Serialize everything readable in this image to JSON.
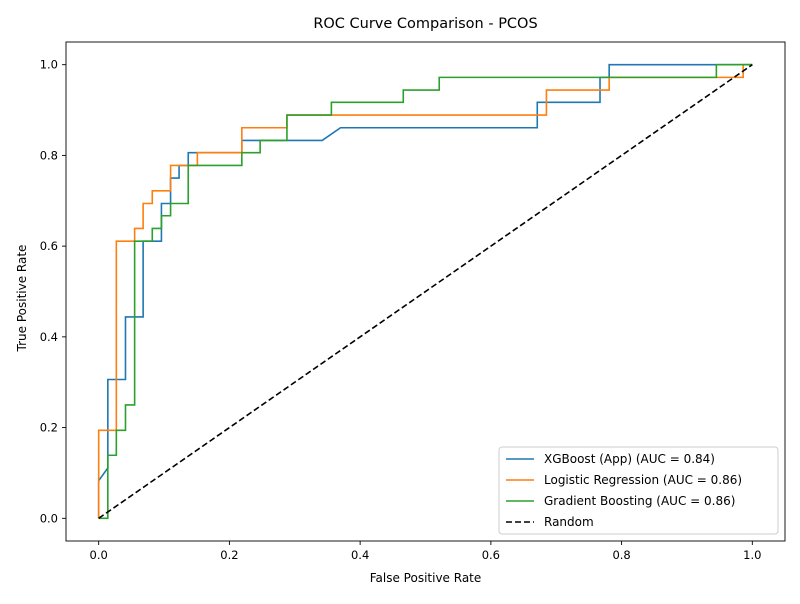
{
  "chart_data": {
    "type": "line",
    "title": "ROC Curve Comparison - PCOS",
    "xlabel": "False Positive Rate",
    "ylabel": "True Positive Rate",
    "xlim": [
      -0.05,
      1.05
    ],
    "ylim": [
      -0.05,
      1.05
    ],
    "xticks": [
      "0.0",
      "0.2",
      "0.4",
      "0.6",
      "0.8",
      "1.0"
    ],
    "yticks": [
      "0.0",
      "0.2",
      "0.4",
      "0.6",
      "0.8",
      "1.0"
    ],
    "grid": false,
    "legend_position": "lower-right",
    "series": [
      {
        "name": "XGBoost (App) (AUC = 0.84)",
        "color": "#1f77b4",
        "x": [
          0.0,
          0.0,
          0.014,
          0.014,
          0.041,
          0.041,
          0.068,
          0.068,
          0.096,
          0.096,
          0.11,
          0.11,
          0.123,
          0.123,
          0.137,
          0.137,
          0.219,
          0.219,
          0.342,
          0.37,
          0.671,
          0.671,
          0.767,
          0.767,
          0.781,
          0.781,
          1.0
        ],
        "y": [
          0.0,
          0.083,
          0.111,
          0.306,
          0.306,
          0.444,
          0.444,
          0.611,
          0.611,
          0.694,
          0.694,
          0.75,
          0.75,
          0.778,
          0.778,
          0.806,
          0.806,
          0.833,
          0.833,
          0.861,
          0.861,
          0.917,
          0.917,
          0.972,
          0.972,
          1.0,
          1.0
        ]
      },
      {
        "name": "Logistic Regression (AUC = 0.86)",
        "color": "#ff7f0e",
        "x": [
          0.0,
          0.0,
          0.027,
          0.027,
          0.055,
          0.055,
          0.068,
          0.068,
          0.082,
          0.082,
          0.11,
          0.11,
          0.151,
          0.151,
          0.219,
          0.219,
          0.288,
          0.288,
          0.685,
          0.685,
          0.781,
          0.781,
          0.986,
          0.986,
          1.0
        ],
        "y": [
          0.0,
          0.194,
          0.194,
          0.611,
          0.611,
          0.639,
          0.639,
          0.694,
          0.694,
          0.722,
          0.722,
          0.778,
          0.778,
          0.806,
          0.806,
          0.861,
          0.861,
          0.889,
          0.889,
          0.944,
          0.944,
          0.972,
          0.972,
          1.0,
          1.0
        ]
      },
      {
        "name": "Gradient Boosting (AUC = 0.86)",
        "color": "#2ca02c",
        "x": [
          0.0,
          0.014,
          0.014,
          0.027,
          0.027,
          0.041,
          0.041,
          0.055,
          0.055,
          0.082,
          0.082,
          0.096,
          0.096,
          0.11,
          0.11,
          0.137,
          0.137,
          0.219,
          0.219,
          0.247,
          0.247,
          0.288,
          0.288,
          0.356,
          0.356,
          0.466,
          0.466,
          0.521,
          0.521,
          0.767,
          0.767,
          0.945,
          0.945,
          1.0
        ],
        "y": [
          0.0,
          0.0,
          0.139,
          0.139,
          0.194,
          0.194,
          0.25,
          0.25,
          0.611,
          0.611,
          0.639,
          0.639,
          0.667,
          0.667,
          0.694,
          0.694,
          0.778,
          0.778,
          0.806,
          0.806,
          0.833,
          0.833,
          0.889,
          0.889,
          0.917,
          0.917,
          0.944,
          0.944,
          0.972,
          0.972,
          0.972,
          0.972,
          1.0,
          1.0
        ]
      },
      {
        "name": "Random",
        "color": "#000000",
        "dashed": true,
        "x": [
          0.0,
          1.0
        ],
        "y": [
          0.0,
          1.0
        ]
      }
    ]
  }
}
